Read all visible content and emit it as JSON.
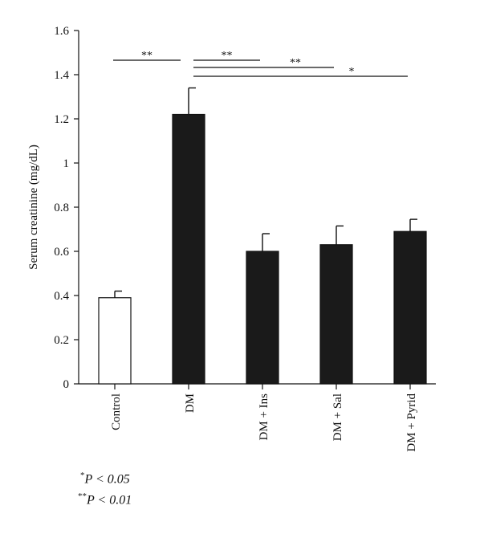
{
  "chart_data": {
    "type": "bar",
    "ylabel": "Serum creatinine (mg/dL)",
    "ylim": [
      0,
      1.6
    ],
    "yticks": [
      "0",
      "0.2",
      "0.4",
      "0.6",
      "0.8",
      "1",
      "1.2",
      "1.4",
      "1.6"
    ],
    "ytick_values": [
      0,
      0.2,
      0.4,
      0.6,
      0.8,
      1.0,
      1.2,
      1.4,
      1.6
    ],
    "categories": [
      "Control",
      "DM",
      "DM + Ins",
      "DM + Sal",
      "DM + Pyrid"
    ],
    "values": [
      0.39,
      1.22,
      0.6,
      0.63,
      0.69
    ],
    "errors": [
      0.03,
      0.12,
      0.08,
      0.085,
      0.055
    ],
    "bar_colors": [
      "#ffffff",
      "#1a1a1a",
      "#1a1a1a",
      "#1a1a1a",
      "#1a1a1a"
    ],
    "significance": [
      {
        "from": 0,
        "to": 1,
        "label": "**"
      },
      {
        "from": 1,
        "to": 2,
        "label": "**"
      },
      {
        "from": 1,
        "to": 3,
        "label": "**"
      },
      {
        "from": 1,
        "to": 4,
        "label": "*"
      }
    ],
    "grid": false
  },
  "footnotes": [
    {
      "mark": "*",
      "text": "P < 0.05"
    },
    {
      "mark": "**",
      "text": "P < 0.01"
    }
  ]
}
